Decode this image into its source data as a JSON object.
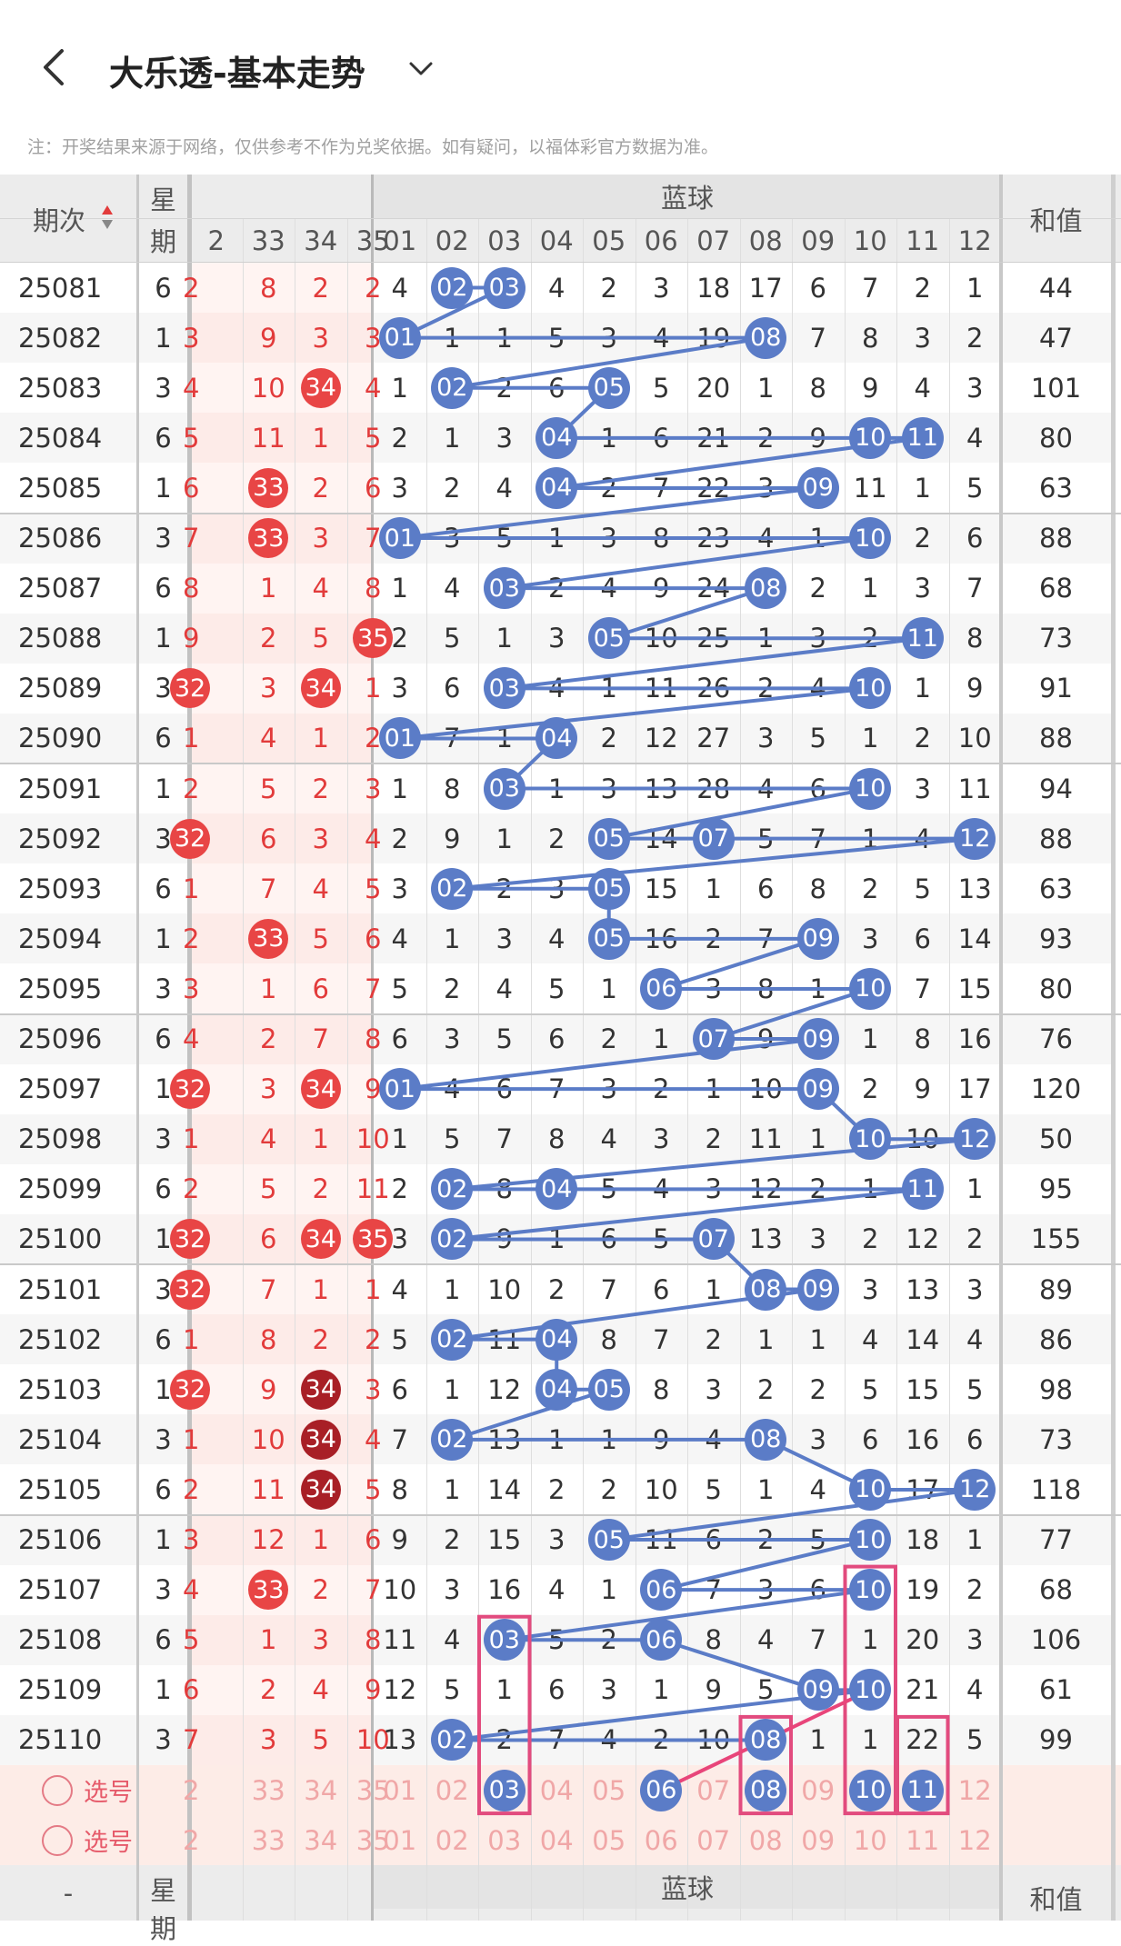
{
  "header": {
    "title": "大乐透-基本走势",
    "back_icon": "chevron-left-icon",
    "dropdown_icon": "chevron-down-icon"
  },
  "note": "注：开奖结果来源于网络，仅供参考不作为兑奖依据。如有疑问，以福体彩官方数据为准。",
  "table": {
    "col_issue": "期次",
    "col_week_1": "星",
    "col_week_2": "期",
    "blue_group_label": "蓝球",
    "col_sum": "和值",
    "front_visible_cols": [
      "2",
      "33",
      "34",
      "35"
    ],
    "blue_cols": [
      "01",
      "02",
      "03",
      "04",
      "05",
      "06",
      "07",
      "08",
      "09",
      "10",
      "11",
      "12"
    ],
    "rows": [
      {
        "issue": "25081",
        "week": "6",
        "front": [
          "2",
          "8",
          "2",
          "2"
        ],
        "blue": [
          "4",
          "02",
          "03",
          "4",
          "2",
          "3",
          "18",
          "17",
          "6",
          "7",
          "2",
          "1"
        ],
        "sum": "44",
        "fhit": []
      },
      {
        "issue": "25082",
        "week": "1",
        "front": [
          "3",
          "9",
          "3",
          "3"
        ],
        "blue": [
          "01",
          "1",
          "1",
          "5",
          "3",
          "4",
          "19",
          "08",
          "7",
          "8",
          "3",
          "2"
        ],
        "sum": "47",
        "fhit": []
      },
      {
        "issue": "25083",
        "week": "3",
        "front": [
          "4",
          "10",
          "34",
          "4"
        ],
        "blue": [
          "1",
          "02",
          "2",
          "6",
          "05",
          "5",
          "20",
          "1",
          "8",
          "9",
          "4",
          "3"
        ],
        "sum": "101",
        "fhit": [
          2
        ]
      },
      {
        "issue": "25084",
        "week": "6",
        "front": [
          "5",
          "11",
          "1",
          "5"
        ],
        "blue": [
          "2",
          "1",
          "3",
          "04",
          "1",
          "6",
          "21",
          "2",
          "9",
          "10",
          "11",
          "4"
        ],
        "sum": "80",
        "fhit": []
      },
      {
        "issue": "25085",
        "week": "1",
        "front": [
          "6",
          "33",
          "2",
          "6"
        ],
        "blue": [
          "3",
          "2",
          "4",
          "04",
          "2",
          "7",
          "22",
          "3",
          "09",
          "11",
          "1",
          "5"
        ],
        "sum": "63",
        "fhit": [
          1
        ]
      },
      {
        "issue": "25086",
        "week": "3",
        "front": [
          "7",
          "33",
          "3",
          "7"
        ],
        "blue": [
          "01",
          "3",
          "5",
          "1",
          "3",
          "8",
          "23",
          "4",
          "1",
          "10",
          "2",
          "6"
        ],
        "sum": "88",
        "fhit": [
          1
        ]
      },
      {
        "issue": "25087",
        "week": "6",
        "front": [
          "8",
          "1",
          "4",
          "8"
        ],
        "blue": [
          "1",
          "4",
          "03",
          "2",
          "4",
          "9",
          "24",
          "08",
          "2",
          "1",
          "3",
          "7"
        ],
        "sum": "68",
        "fhit": []
      },
      {
        "issue": "25088",
        "week": "1",
        "front": [
          "9",
          "2",
          "5",
          "35"
        ],
        "blue": [
          "2",
          "5",
          "1",
          "3",
          "05",
          "10",
          "25",
          "1",
          "3",
          "2",
          "11",
          "8"
        ],
        "sum": "73",
        "fhit": [
          3
        ]
      },
      {
        "issue": "25089",
        "week": "3",
        "front": [
          "32",
          "3",
          "34",
          "1"
        ],
        "blue": [
          "3",
          "6",
          "03",
          "4",
          "1",
          "11",
          "26",
          "2",
          "4",
          "10",
          "1",
          "9"
        ],
        "sum": "91",
        "fhit": [
          0,
          2
        ]
      },
      {
        "issue": "25090",
        "week": "6",
        "front": [
          "1",
          "4",
          "1",
          "2"
        ],
        "blue": [
          "01",
          "7",
          "1",
          "04",
          "2",
          "12",
          "27",
          "3",
          "5",
          "1",
          "2",
          "10"
        ],
        "sum": "88",
        "fhit": []
      },
      {
        "issue": "25091",
        "week": "1",
        "front": [
          "2",
          "5",
          "2",
          "3"
        ],
        "blue": [
          "1",
          "8",
          "03",
          "1",
          "3",
          "13",
          "28",
          "4",
          "6",
          "10",
          "3",
          "11"
        ],
        "sum": "94",
        "fhit": []
      },
      {
        "issue": "25092",
        "week": "3",
        "front": [
          "32",
          "6",
          "3",
          "4"
        ],
        "blue": [
          "2",
          "9",
          "1",
          "2",
          "05",
          "14",
          "07",
          "5",
          "7",
          "1",
          "4",
          "12"
        ],
        "sum": "88",
        "fhit": [
          0
        ]
      },
      {
        "issue": "25093",
        "week": "6",
        "front": [
          "1",
          "7",
          "4",
          "5"
        ],
        "blue": [
          "3",
          "02",
          "2",
          "3",
          "05",
          "15",
          "1",
          "6",
          "8",
          "2",
          "5",
          "13"
        ],
        "sum": "63",
        "fhit": []
      },
      {
        "issue": "25094",
        "week": "1",
        "front": [
          "2",
          "33",
          "5",
          "6"
        ],
        "blue": [
          "4",
          "1",
          "3",
          "4",
          "05",
          "16",
          "2",
          "7",
          "09",
          "3",
          "6",
          "14"
        ],
        "sum": "93",
        "fhit": [
          1
        ]
      },
      {
        "issue": "25095",
        "week": "3",
        "front": [
          "3",
          "1",
          "6",
          "7"
        ],
        "blue": [
          "5",
          "2",
          "4",
          "5",
          "1",
          "06",
          "3",
          "8",
          "1",
          "10",
          "7",
          "15"
        ],
        "sum": "80",
        "fhit": []
      },
      {
        "issue": "25096",
        "week": "6",
        "front": [
          "4",
          "2",
          "7",
          "8"
        ],
        "blue": [
          "6",
          "3",
          "5",
          "6",
          "2",
          "1",
          "07",
          "9",
          "09",
          "1",
          "8",
          "16"
        ],
        "sum": "76",
        "fhit": []
      },
      {
        "issue": "25097",
        "week": "1",
        "front": [
          "32",
          "3",
          "34",
          "9"
        ],
        "blue": [
          "01",
          "4",
          "6",
          "7",
          "3",
          "2",
          "1",
          "10",
          "09",
          "2",
          "9",
          "17"
        ],
        "sum": "120",
        "fhit": [
          0,
          2
        ]
      },
      {
        "issue": "25098",
        "week": "3",
        "front": [
          "1",
          "4",
          "1",
          "10"
        ],
        "blue": [
          "1",
          "5",
          "7",
          "8",
          "4",
          "3",
          "2",
          "11",
          "1",
          "10",
          "10",
          "12"
        ],
        "sum": "50",
        "fhit": []
      },
      {
        "issue": "25099",
        "week": "6",
        "front": [
          "2",
          "5",
          "2",
          "11"
        ],
        "blue": [
          "2",
          "02",
          "8",
          "04",
          "5",
          "4",
          "3",
          "12",
          "2",
          "1",
          "11",
          "1"
        ],
        "sum": "95",
        "fhit": []
      },
      {
        "issue": "25100",
        "week": "1",
        "front": [
          "32",
          "6",
          "34",
          "35"
        ],
        "blue": [
          "3",
          "02",
          "9",
          "1",
          "6",
          "5",
          "07",
          "13",
          "3",
          "2",
          "12",
          "2"
        ],
        "sum": "155",
        "fhit": [
          0,
          2,
          3
        ]
      },
      {
        "issue": "25101",
        "week": "3",
        "front": [
          "32",
          "7",
          "1",
          "1"
        ],
        "blue": [
          "4",
          "1",
          "10",
          "2",
          "7",
          "6",
          "1",
          "08",
          "09",
          "3",
          "13",
          "3"
        ],
        "sum": "89",
        "fhit": [
          0
        ]
      },
      {
        "issue": "25102",
        "week": "6",
        "front": [
          "1",
          "8",
          "2",
          "2"
        ],
        "blue": [
          "5",
          "02",
          "11",
          "04",
          "8",
          "7",
          "2",
          "1",
          "1",
          "4",
          "14",
          "4"
        ],
        "sum": "86",
        "fhit": []
      },
      {
        "issue": "25103",
        "week": "1",
        "front": [
          "32",
          "9",
          "34",
          "3"
        ],
        "blue": [
          "6",
          "1",
          "12",
          "04",
          "05",
          "8",
          "3",
          "2",
          "2",
          "5",
          "15",
          "5"
        ],
        "sum": "98",
        "fhit": [
          0,
          2
        ]
      },
      {
        "issue": "25104",
        "week": "3",
        "front": [
          "1",
          "10",
          "34",
          "4"
        ],
        "blue": [
          "7",
          "02",
          "13",
          "1",
          "1",
          "9",
          "4",
          "08",
          "3",
          "6",
          "16",
          "6"
        ],
        "sum": "73",
        "fhit": [
          2
        ]
      },
      {
        "issue": "25105",
        "week": "6",
        "front": [
          "2",
          "11",
          "34",
          "5"
        ],
        "blue": [
          "8",
          "1",
          "14",
          "2",
          "2",
          "10",
          "5",
          "1",
          "4",
          "10",
          "17",
          "12"
        ],
        "sum": "118",
        "fhit": [
          2
        ]
      },
      {
        "issue": "25106",
        "week": "1",
        "front": [
          "3",
          "12",
          "1",
          "6"
        ],
        "blue": [
          "9",
          "2",
          "15",
          "3",
          "05",
          "11",
          "6",
          "2",
          "5",
          "10",
          "18",
          "1"
        ],
        "sum": "77",
        "fhit": []
      },
      {
        "issue": "25107",
        "week": "3",
        "front": [
          "4",
          "33",
          "2",
          "7"
        ],
        "blue": [
          "10",
          "3",
          "16",
          "4",
          "1",
          "06",
          "7",
          "3",
          "6",
          "10",
          "19",
          "2"
        ],
        "sum": "68",
        "fhit": [
          1
        ]
      },
      {
        "issue": "25108",
        "week": "6",
        "front": [
          "5",
          "1",
          "3",
          "8"
        ],
        "blue": [
          "11",
          "4",
          "03",
          "5",
          "2",
          "06",
          "8",
          "4",
          "7",
          "1",
          "20",
          "3"
        ],
        "sum": "106",
        "fhit": []
      },
      {
        "issue": "25109",
        "week": "1",
        "front": [
          "6",
          "2",
          "4",
          "9"
        ],
        "blue": [
          "12",
          "5",
          "1",
          "6",
          "3",
          "1",
          "9",
          "5",
          "09",
          "10",
          "21",
          "4"
        ],
        "sum": "61",
        "fhit": []
      },
      {
        "issue": "25110",
        "week": "3",
        "front": [
          "7",
          "3",
          "5",
          "10"
        ],
        "blue": [
          "13",
          "02",
          "2",
          "7",
          "4",
          "2",
          "10",
          "08",
          "1",
          "1",
          "22",
          "5"
        ],
        "sum": "99",
        "fhit": []
      }
    ],
    "pick_label": "选号",
    "pick_front": [
      "2",
      "33",
      "34",
      "35"
    ],
    "pick_blue": [
      "01",
      "02",
      "03",
      "04",
      "05",
      "06",
      "07",
      "08",
      "09",
      "10",
      "11",
      "12"
    ],
    "footer_issue": "-",
    "colors": {
      "blue_ball": "#5b7cc7",
      "red_ball": "#e84545",
      "dark_red_ball": "#a81f26",
      "pink_box": "#e24b7e",
      "header_bg": "#ececec",
      "pick_bg": "#fdece7"
    }
  }
}
